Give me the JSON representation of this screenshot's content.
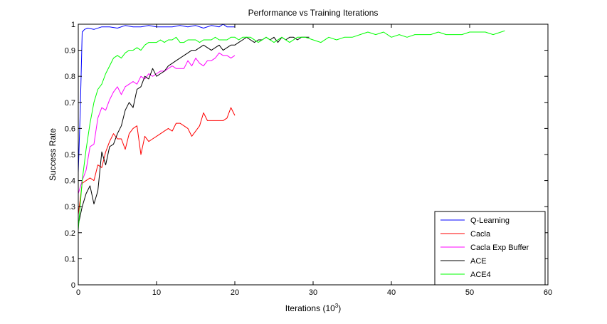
{
  "chart_data": {
    "type": "line",
    "title": "Performance vs Training Iterations",
    "xlabel": "Iterations (10",
    "xlabel_sup": "3",
    "xlabel_close": ")",
    "ylabel": "Success Rate",
    "xlim": [
      0,
      60
    ],
    "ylim": [
      0,
      1
    ],
    "xticks": [
      0,
      10,
      20,
      30,
      40,
      50,
      60
    ],
    "yticks": [
      0,
      0.1,
      0.2,
      0.3,
      0.4,
      0.5,
      0.6,
      0.7,
      0.8,
      0.9,
      1
    ],
    "xtick_labels": [
      "0",
      "10",
      "20",
      "30",
      "40",
      "50",
      "60"
    ],
    "ytick_labels": [
      "0",
      "0.1",
      "0.2",
      "0.3",
      "0.4",
      "0.5",
      "0.6",
      "0.7",
      "0.8",
      "0.9",
      "1"
    ],
    "grid": false,
    "legend_position": "bottom-right",
    "series": [
      {
        "name": "Q-Learning",
        "color": "#0000ff",
        "x": [
          0,
          0.25,
          0.5,
          0.8,
          1.2,
          2,
          3,
          4,
          5,
          6,
          7,
          8,
          9,
          10,
          11,
          12,
          13,
          14,
          15,
          16,
          17,
          18,
          18.5,
          19,
          20
        ],
        "y": [
          0.43,
          0.67,
          0.97,
          0.98,
          0.985,
          0.98,
          0.99,
          0.99,
          0.985,
          0.995,
          0.99,
          0.99,
          0.995,
          0.99,
          0.99,
          0.99,
          0.995,
          0.99,
          0.995,
          0.985,
          0.995,
          0.99,
          1.0,
          0.99,
          0.99
        ]
      },
      {
        "name": "Cacla",
        "color": "#ff0000",
        "x": [
          0,
          0.5,
          1,
          1.5,
          2,
          2.5,
          3,
          3.5,
          4,
          4.5,
          5,
          5.5,
          6,
          6.5,
          7,
          7.5,
          8,
          8.5,
          9,
          9.5,
          10,
          11,
          11.5,
          12,
          12.5,
          13,
          13.5,
          14,
          14.5,
          15,
          15.5,
          16,
          16.5,
          17,
          17.5,
          18,
          18.5,
          19,
          19.5,
          20
        ],
        "y": [
          0.27,
          0.39,
          0.4,
          0.41,
          0.4,
          0.46,
          0.45,
          0.51,
          0.55,
          0.58,
          0.56,
          0.56,
          0.52,
          0.58,
          0.6,
          0.61,
          0.5,
          0.57,
          0.55,
          0.56,
          0.57,
          0.59,
          0.6,
          0.59,
          0.62,
          0.62,
          0.61,
          0.6,
          0.57,
          0.59,
          0.61,
          0.66,
          0.63,
          0.63,
          0.63,
          0.63,
          0.63,
          0.64,
          0.68,
          0.65
        ]
      },
      {
        "name": "Cacla Exp Buffer",
        "color": "#ff00ff",
        "x": [
          0,
          0.5,
          1,
          1.5,
          2,
          2.5,
          3,
          3.5,
          4,
          4.5,
          5,
          5.5,
          6,
          6.5,
          7,
          7.5,
          8,
          8.5,
          9,
          9.5,
          10,
          10.5,
          11,
          11.5,
          12,
          12.5,
          13,
          13.5,
          14,
          14.5,
          15,
          15.5,
          16,
          16.5,
          17,
          17.5,
          18,
          18.5,
          19,
          19.5,
          20
        ],
        "y": [
          0.35,
          0.4,
          0.44,
          0.53,
          0.54,
          0.64,
          0.68,
          0.67,
          0.71,
          0.74,
          0.76,
          0.73,
          0.76,
          0.77,
          0.78,
          0.77,
          0.8,
          0.79,
          0.81,
          0.8,
          0.81,
          0.82,
          0.82,
          0.83,
          0.84,
          0.83,
          0.83,
          0.83,
          0.86,
          0.84,
          0.87,
          0.85,
          0.84,
          0.86,
          0.86,
          0.87,
          0.89,
          0.88,
          0.88,
          0.87,
          0.88
        ]
      },
      {
        "name": "ACE",
        "color": "#000000",
        "x": [
          0,
          0.5,
          1,
          1.5,
          2,
          2.5,
          3,
          3.5,
          4,
          4.5,
          5,
          5.5,
          6,
          6.5,
          7,
          7.5,
          8,
          8.5,
          9,
          9.5,
          10,
          10.5,
          11,
          11.5,
          12,
          12.5,
          13,
          13.5,
          14,
          14.5,
          15,
          15.5,
          16,
          16.5,
          17,
          17.5,
          18,
          18.5,
          19,
          19.5,
          20,
          20.5,
          21,
          21.5,
          22,
          22.5,
          23,
          23.5,
          24,
          24.5,
          25,
          25.5,
          26,
          26.5,
          27,
          27.5,
          28,
          28.5,
          29,
          29.5
        ],
        "y": [
          0.23,
          0.3,
          0.35,
          0.38,
          0.31,
          0.36,
          0.51,
          0.46,
          0.53,
          0.54,
          0.58,
          0.61,
          0.67,
          0.7,
          0.68,
          0.75,
          0.76,
          0.8,
          0.79,
          0.83,
          0.8,
          0.81,
          0.82,
          0.84,
          0.85,
          0.86,
          0.87,
          0.88,
          0.89,
          0.9,
          0.9,
          0.91,
          0.92,
          0.91,
          0.9,
          0.91,
          0.92,
          0.9,
          0.91,
          0.92,
          0.92,
          0.93,
          0.94,
          0.95,
          0.94,
          0.93,
          0.94,
          0.94,
          0.95,
          0.94,
          0.95,
          0.93,
          0.95,
          0.94,
          0.95,
          0.95,
          0.94,
          0.95,
          0.95,
          0.95
        ]
      },
      {
        "name": "ACE4",
        "color": "#00ff00",
        "x": [
          0,
          0.5,
          1,
          1.5,
          2,
          2.5,
          3,
          3.5,
          4,
          4.5,
          5,
          5.5,
          6,
          6.5,
          7,
          7.5,
          8,
          8.5,
          9,
          9.5,
          10,
          10.5,
          11,
          11.5,
          12,
          12.5,
          13,
          13.5,
          14,
          14.5,
          15,
          15.5,
          16,
          16.5,
          17,
          17.5,
          18,
          18.5,
          19,
          19.5,
          20,
          20.5,
          21,
          22,
          23,
          24,
          25,
          26,
          27,
          28,
          29,
          30,
          31,
          32,
          33,
          34,
          35,
          36,
          37,
          38,
          39,
          40,
          41,
          42,
          43,
          44,
          45,
          46,
          47,
          48,
          49,
          50,
          51,
          52,
          53,
          54,
          54.5
        ],
        "y": [
          0.21,
          0.4,
          0.52,
          0.62,
          0.7,
          0.75,
          0.77,
          0.81,
          0.84,
          0.87,
          0.88,
          0.87,
          0.89,
          0.9,
          0.9,
          0.91,
          0.9,
          0.92,
          0.93,
          0.93,
          0.93,
          0.94,
          0.93,
          0.94,
          0.94,
          0.95,
          0.93,
          0.93,
          0.94,
          0.94,
          0.94,
          0.93,
          0.94,
          0.94,
          0.94,
          0.95,
          0.94,
          0.94,
          0.94,
          0.95,
          0.95,
          0.94,
          0.95,
          0.95,
          0.93,
          0.95,
          0.93,
          0.95,
          0.93,
          0.95,
          0.95,
          0.94,
          0.93,
          0.95,
          0.94,
          0.95,
          0.95,
          0.96,
          0.97,
          0.96,
          0.97,
          0.95,
          0.96,
          0.95,
          0.96,
          0.96,
          0.96,
          0.97,
          0.96,
          0.96,
          0.96,
          0.97,
          0.97,
          0.97,
          0.96,
          0.97,
          0.975
        ]
      }
    ]
  }
}
